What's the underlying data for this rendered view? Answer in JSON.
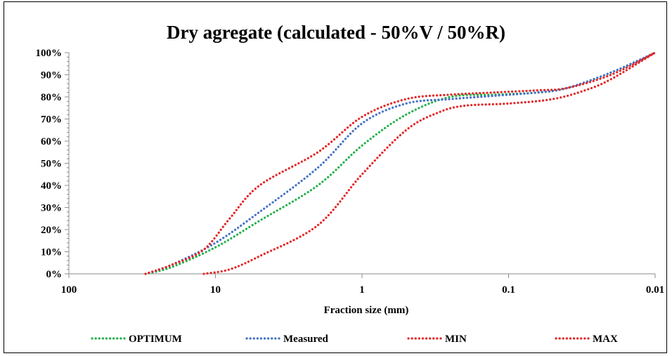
{
  "chart_data": {
    "type": "line",
    "title": "Dry agregate (calculated - 50%V / 50%R)",
    "xlabel": "Fraction size (mm)",
    "ylabel": "",
    "x_scale": "log",
    "x_reversed": true,
    "xlim": [
      100,
      0.01
    ],
    "ylim": [
      0,
      100
    ],
    "x_ticks": [
      100,
      10,
      1,
      0.1,
      0.01
    ],
    "x_tick_labels": [
      "100",
      "10",
      "1",
      "0.1",
      "0.01"
    ],
    "y_ticks": [
      0,
      10,
      20,
      30,
      40,
      50,
      60,
      70,
      80,
      90,
      100
    ],
    "y_tick_labels": [
      "0%",
      "10%",
      "20%",
      "30%",
      "40%",
      "50%",
      "60%",
      "70%",
      "80%",
      "90%",
      "100%"
    ],
    "legend_position": "bottom",
    "series": [
      {
        "name": "OPTIMUM",
        "color": "#22b04a",
        "points": [
          [
            30,
            0
          ],
          [
            20,
            3
          ],
          [
            10,
            12
          ],
          [
            5,
            24
          ],
          [
            2,
            40
          ],
          [
            1,
            58
          ],
          [
            0.5,
            72
          ],
          [
            0.25,
            80
          ],
          [
            0.125,
            81
          ],
          [
            0.063,
            82
          ],
          [
            0.04,
            84
          ],
          [
            0.02,
            91
          ],
          [
            0.01,
            100
          ]
        ]
      },
      {
        "name": "Measured",
        "color": "#4472c4",
        "points": [
          [
            30,
            0
          ],
          [
            20,
            4
          ],
          [
            10,
            14
          ],
          [
            5,
            28
          ],
          [
            2,
            48
          ],
          [
            1,
            68
          ],
          [
            0.5,
            77
          ],
          [
            0.25,
            79
          ],
          [
            0.125,
            80.5
          ],
          [
            0.063,
            82
          ],
          [
            0.04,
            84
          ],
          [
            0.02,
            91
          ],
          [
            0.01,
            100
          ]
        ]
      },
      {
        "name": "MIN",
        "color": "#e32626",
        "points": [
          [
            30,
            0
          ],
          [
            20,
            4
          ],
          [
            12,
            11
          ],
          [
            8,
            25
          ],
          [
            5,
            40
          ],
          [
            2,
            55
          ],
          [
            1,
            71
          ],
          [
            0.5,
            79
          ],
          [
            0.25,
            81
          ],
          [
            0.125,
            82
          ],
          [
            0.063,
            83
          ],
          [
            0.04,
            84
          ],
          [
            0.02,
            90
          ],
          [
            0.01,
            100
          ]
        ]
      },
      {
        "name": "MAX",
        "color": "#e32626",
        "points": [
          [
            12,
            0
          ],
          [
            8,
            2
          ],
          [
            5,
            8
          ],
          [
            2,
            22
          ],
          [
            1,
            45
          ],
          [
            0.5,
            65
          ],
          [
            0.3,
            73
          ],
          [
            0.2,
            76
          ],
          [
            0.1,
            77
          ],
          [
            0.05,
            79
          ],
          [
            0.03,
            83
          ],
          [
            0.02,
            88
          ],
          [
            0.01,
            100
          ]
        ]
      }
    ]
  }
}
